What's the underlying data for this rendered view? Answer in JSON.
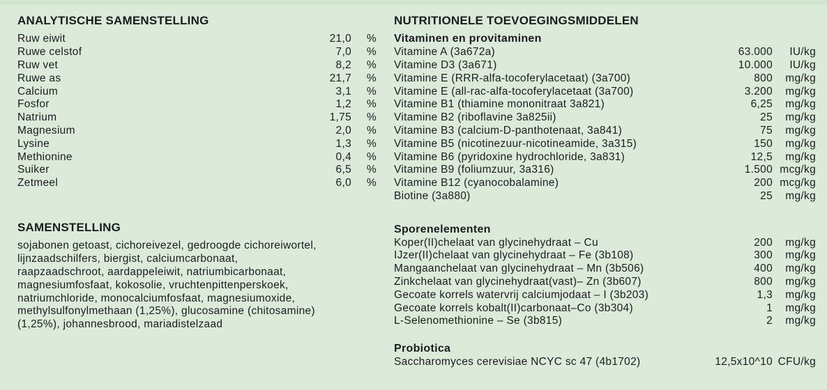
{
  "colors": {
    "background": "#dcebd9",
    "top_band": "#d3e5cf",
    "text": "#1b1c20"
  },
  "left": {
    "analytical": {
      "title": "ANALYTISCHE SAMENSTELLING",
      "rows": [
        {
          "label": "Ruw eiwit",
          "value": "21,0",
          "unit": "%"
        },
        {
          "label": "Ruwe celstof",
          "value": "7,0",
          "unit": "%"
        },
        {
          "label": "Ruw vet",
          "value": "8,2",
          "unit": "%"
        },
        {
          "label": "Ruwe as",
          "value": "21,7",
          "unit": "%"
        },
        {
          "label": "Calcium",
          "value": "3,1",
          "unit": "%"
        },
        {
          "label": "Fosfor",
          "value": "1,2",
          "unit": "%"
        },
        {
          "label": "Natrium",
          "value": "1,75",
          "unit": "%"
        },
        {
          "label": "Magnesium",
          "value": "2,0",
          "unit": "%"
        },
        {
          "label": "Lysine",
          "value": "1,3",
          "unit": "%"
        },
        {
          "label": "Methionine",
          "value": "0,4",
          "unit": "%"
        },
        {
          "label": "Suiker",
          "value": "6,5",
          "unit": "%"
        },
        {
          "label": "Zetmeel",
          "value": "6,0",
          "unit": "%"
        }
      ]
    },
    "composition": {
      "title": "SAMENSTELLING",
      "text": "sojabonen getoast, cichoreivezel, gedroogde cichoreiwortel,\nlijnzaadschilfers, biergist, calciumcarbonaat,\nraapzaadschroot, aardappeleiwit, natriumbicarbonaat,\nmagnesiumfosfaat, kokosolie, vruchtenpittenperskoek,\nnatriumchloride, monocalciumfosfaat, magnesiumoxide,\nmethylsulfonylmethaan (1,25%), glucosamine (chitosamine)\n(1,25%), johannesbrood, mariadistelzaad"
    }
  },
  "right": {
    "title": "NUTRITIONELE TOEVOEGINGSMIDDELEN",
    "vitamins": {
      "title": "Vitaminen en provitaminen",
      "rows": [
        {
          "label": "Vitamine A (3a672a)",
          "value": "63.000",
          "unit": "IU/kg"
        },
        {
          "label": "Vitamine D3 (3a671)",
          "value": "10.000",
          "unit": "IU/kg"
        },
        {
          "label": "Vitamine E (RRR-alfa-tocoferylacetaat) (3a700)",
          "value": "800",
          "unit": "mg/kg"
        },
        {
          "label": "Vitamine E (all-rac-alfa-tocoferylacetaat (3a700)",
          "value": "3.200",
          "unit": "mg/kg"
        },
        {
          "label": "Vitamine B1 (thiamine mononitraat 3a821)",
          "value": "6,25",
          "unit": "mg/kg"
        },
        {
          "label": "Vitamine B2 (riboflavine 3a825ii)",
          "value": "25",
          "unit": "mg/kg"
        },
        {
          "label": "Vitamine B3 (calcium-D-panthotenaat, 3a841)",
          "value": "75",
          "unit": "mg/kg"
        },
        {
          "label": "Vitamine B5 (nicotinezuur-nicotineamide, 3a315)",
          "value": "150",
          "unit": "mg/kg"
        },
        {
          "label": "Vitamine B6 (pyridoxine hydrochloride, 3a831)",
          "value": "12,5",
          "unit": "mg/kg"
        },
        {
          "label": "Vitamine B9 (foliumzuur, 3a316)",
          "value": "1.500",
          "unit": "mcg/kg"
        },
        {
          "label": "Vitamine B12 (cyanocobalamine)",
          "value": "200",
          "unit": "mcg/kg"
        },
        {
          "label": "Biotine (3a880)",
          "value": "25",
          "unit": "mg/kg"
        }
      ]
    },
    "trace_elements": {
      "title": "Sporenelementen",
      "rows": [
        {
          "label": "Koper(II)chelaat van glycinehydraat – Cu",
          "value": "200",
          "unit": "mg/kg"
        },
        {
          "label": "IJzer(II)chelaat van glycinehydraat – Fe (3b108)",
          "value": "300",
          "unit": "mg/kg"
        },
        {
          "label": "Mangaanchelaat van glycinehydraat – Mn (3b506)",
          "value": "400",
          "unit": "mg/kg"
        },
        {
          "label": "Zinkchelaat van glycinehydraat(vast)– Zn (3b607)",
          "value": "800",
          "unit": "mg/kg"
        },
        {
          "label": "Gecoate korrels watervrij calciumjodaat – I (3b203)",
          "value": "1,3",
          "unit": "mg/kg"
        },
        {
          "label": "Gecoate korrels kobalt(II)carbonaat–Co (3b304)",
          "value": "1",
          "unit": "mg/kg"
        },
        {
          "label": "L-Selenomethionine – Se (3b815)",
          "value": "2",
          "unit": "mg/kg"
        }
      ]
    },
    "probiotics": {
      "title": "Probiotica",
      "rows": [
        {
          "label": "Saccharomyces cerevisiae NCYC sc 47 (4b1702)",
          "value": "12,5x10^10",
          "unit": "CFU/kg"
        }
      ]
    }
  }
}
